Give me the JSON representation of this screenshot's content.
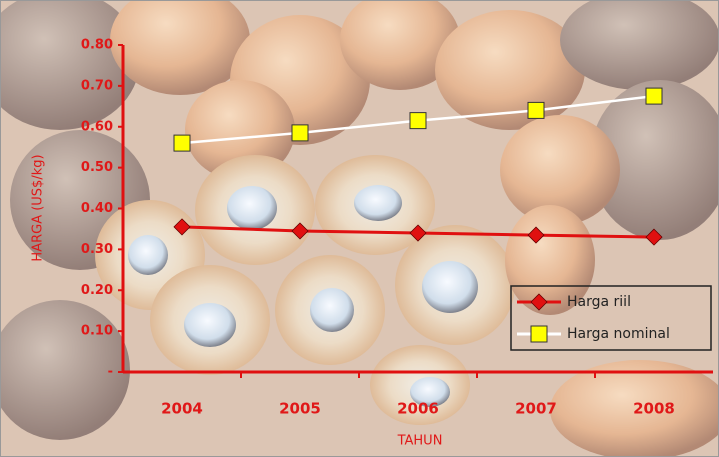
{
  "chart_data": {
    "type": "line",
    "x_label": "TAHUN",
    "y_label": "HARGA (US$/kg)",
    "categories": [
      "2004",
      "2005",
      "2006",
      "2007",
      "2008"
    ],
    "series": [
      {
        "name": "Harga riil",
        "color": "#e01010",
        "marker": "diamond",
        "values": [
          0.355,
          0.345,
          0.34,
          0.335,
          0.33
        ]
      },
      {
        "name": "Harga nominal",
        "color": "#ffffff",
        "marker_color": "#ffff00",
        "marker": "square",
        "values": [
          0.56,
          0.585,
          0.615,
          0.64,
          0.675
        ]
      }
    ],
    "ylim": [
      0,
      0.8
    ],
    "yticks": [
      {
        "value": 0,
        "label": "-"
      },
      {
        "value": 0.1,
        "label": "0.10"
      },
      {
        "value": 0.2,
        "label": "0.20"
      },
      {
        "value": 0.3,
        "label": "0.30"
      },
      {
        "value": 0.4,
        "label": "0.40"
      },
      {
        "value": 0.5,
        "label": "0.50"
      },
      {
        "value": 0.6,
        "label": "0.60"
      },
      {
        "value": 0.7,
        "label": "0.70"
      },
      {
        "value": 0.8,
        "label": "0.80"
      }
    ],
    "legend": "lower right"
  }
}
